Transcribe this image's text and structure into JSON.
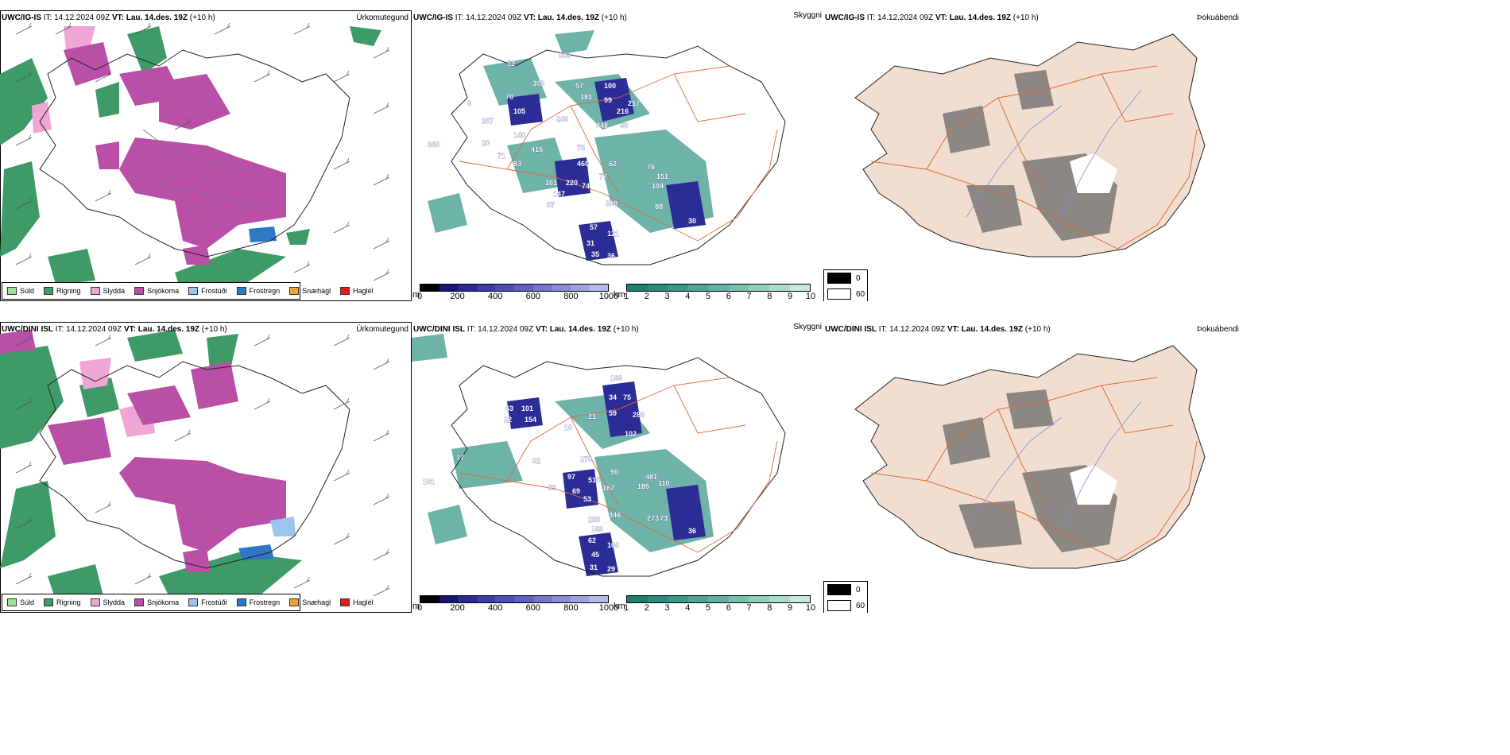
{
  "colors": {
    "rain": "#3e9a66",
    "snow": "#b94fa7",
    "sleet": "#f0a6d4",
    "drizzle": "#9de39a",
    "freezing_drizzle": "#9bc5ee",
    "freezing_rain": "#2f78c5",
    "snow_grains": "#f2a13b",
    "hail": "#e21b1b",
    "land_beige": "#f1ded0",
    "roads": "#e06a3a"
  },
  "rows": [
    {
      "model": "UWC/IG-IS",
      "it_label": "IT:",
      "it_value": "14.12.2024 09Z",
      "vt_label": "VT:",
      "vt_value": "Lau. 14.des. 19Z",
      "lead": "(+10 h)",
      "precip_title": "Úrkomutegund",
      "cloud_title": "Skyggni",
      "fog_title": "Þokuábendi",
      "labels_blue": [
        "883",
        "303",
        "57",
        "100",
        "181",
        "99",
        "217",
        "70",
        "105",
        "246",
        "216",
        "348",
        "86",
        "267",
        "140",
        "20",
        "75",
        "71",
        "83",
        "62",
        "460",
        "76",
        "151",
        "104",
        "101",
        "220",
        "74",
        "77",
        "147",
        "37",
        "208",
        "88",
        "30",
        "57",
        "121",
        "31",
        "35",
        "36"
      ],
      "labels_teal": [
        "368",
        "415",
        "6",
        "52"
      ]
    },
    {
      "model": "UWC/DINI ISL",
      "it_label": "IT:",
      "it_value": "14.12.2024 09Z",
      "vt_label": "VT:",
      "vt_value": "Lau. 14.des. 19Z",
      "lead": "(+10 h)",
      "precip_title": "Úrkomutegund",
      "cloud_title": "Skyggni",
      "fog_title": "Þokuábendi",
      "labels_blue": [
        "166",
        "34",
        "75",
        "63",
        "101",
        "59",
        "289",
        "154",
        "21",
        "10",
        "102",
        "278",
        "90",
        "481",
        "110",
        "97",
        "515",
        "185",
        "53",
        "69",
        "167",
        "53",
        "346",
        "273",
        "73",
        "36",
        "255",
        "163",
        "62",
        "100",
        "45",
        "31",
        "29",
        "101"
      ],
      "labels_teal": [
        "77",
        "82",
        "22"
      ]
    }
  ],
  "precip_legend": [
    "Súld",
    "Rigning",
    "Slydda",
    "Snjókoma",
    "Frostúði",
    "Frostregn",
    "Snæhagl",
    "Haglél"
  ],
  "cloud_base_scale": {
    "unit": "m",
    "ticks": [
      "0",
      "200",
      "400",
      "600",
      "800",
      "1000"
    ]
  },
  "visibility_scale": {
    "unit": "km",
    "ticks": [
      "1",
      "2",
      "3",
      "4",
      "5",
      "6",
      "7",
      "8",
      "9",
      "10"
    ]
  },
  "fog_legend": {
    "low": "0",
    "high": "60"
  }
}
